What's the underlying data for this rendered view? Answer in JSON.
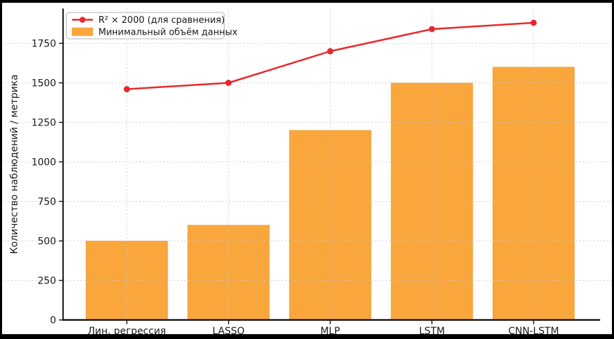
{
  "figure": {
    "background": "#ffffff",
    "frame_color": "#000000"
  },
  "chart_data": {
    "type": "bar",
    "title": "",
    "xlabel": "",
    "ylabel": "Количество наблюдений / метрика",
    "categories": [
      "Лин. регрессия",
      "LASSO",
      "MLP",
      "LSTM",
      "CNN-LSTM"
    ],
    "series": [
      {
        "name": "R² × 2000 (для сравнения)",
        "type": "line",
        "color": "#e8282c",
        "marker": "circle",
        "values": [
          1460,
          1500,
          1700,
          1840,
          1880
        ]
      },
      {
        "name": "Минимальный объём данных",
        "type": "bar",
        "color": "#f9a63c",
        "edge_color": "#eda02e",
        "values": [
          500,
          600,
          1200,
          1500,
          1600
        ]
      }
    ],
    "ylim": [
      0,
      1970
    ],
    "yticks": [
      0,
      250,
      500,
      750,
      1000,
      1250,
      1500,
      1750
    ],
    "grid": true,
    "grid_style": "dashed",
    "legend_position": "upper left"
  },
  "colors": {
    "grid": "#c8c8c8",
    "spine": "#1a1a1a",
    "tick_text": "#1a1a1a",
    "legend_border": "#b5b5b5",
    "legend_bg": "#ffffff"
  }
}
